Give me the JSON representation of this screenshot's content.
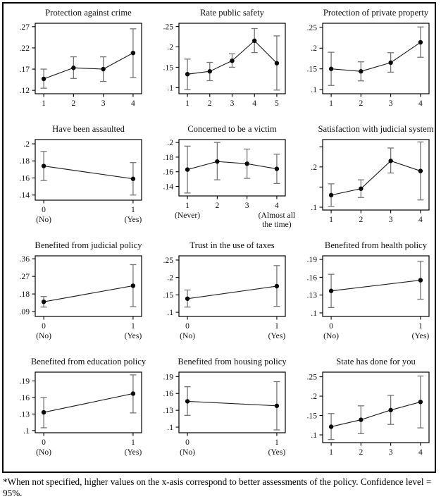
{
  "footnote": "*When not specified, higher values on the x-asis correspond to better assessments of the policy. Confidence level = 95%.",
  "colors": {
    "ink": "#111111",
    "line": "#222222",
    "marker": "#0a0a0a",
    "ci_bar": "#767676",
    "frame": "#000000",
    "background": "#ffffff"
  },
  "chart_data": [
    {
      "type": "line",
      "title": "Protection against crime",
      "x_ticks": [
        "1",
        "2",
        "3",
        "4"
      ],
      "x_subticks": [
        "",
        "",
        "",
        ""
      ],
      "values": [
        0.147,
        0.173,
        0.17,
        0.208
      ],
      "ci_low": [
        0.125,
        0.148,
        0.141,
        0.15
      ],
      "ci_high": [
        0.17,
        0.199,
        0.199,
        0.265
      ],
      "y_tick_values": [
        0.12,
        0.17,
        0.22,
        0.27
      ],
      "y_tick_labels": [
        ".12",
        ".17",
        ".22",
        ".27"
      ],
      "ylim": [
        0.112,
        0.278
      ]
    },
    {
      "type": "line",
      "title": "Rate public safety",
      "x_ticks": [
        "1",
        "2",
        "3",
        "4",
        "5"
      ],
      "x_subticks": [
        "",
        "",
        "",
        "",
        ""
      ],
      "values": [
        0.133,
        0.14,
        0.166,
        0.215,
        0.16
      ],
      "ci_low": [
        0.095,
        0.117,
        0.15,
        0.186,
        0.094
      ],
      "ci_high": [
        0.17,
        0.162,
        0.183,
        0.245,
        0.227
      ],
      "y_tick_values": [
        0.1,
        0.15,
        0.2,
        0.25
      ],
      "y_tick_labels": [
        ".1",
        ".15",
        ".2",
        ".25"
      ],
      "ylim": [
        0.085,
        0.258
      ]
    },
    {
      "type": "line",
      "title": "Protection of private property",
      "x_ticks": [
        "1",
        "2",
        "3",
        "4"
      ],
      "x_subticks": [
        "",
        "",
        "",
        ""
      ],
      "values": [
        0.15,
        0.144,
        0.165,
        0.214
      ],
      "ci_low": [
        0.11,
        0.121,
        0.142,
        0.178
      ],
      "ci_high": [
        0.19,
        0.167,
        0.189,
        0.251
      ],
      "y_tick_values": [
        0.1,
        0.15,
        0.2,
        0.25
      ],
      "y_tick_labels": [
        ".1",
        ".15",
        ".2",
        ".25"
      ],
      "ylim": [
        0.09,
        0.26
      ]
    },
    {
      "type": "line",
      "title": "Have been assaulted",
      "x_ticks": [
        "0",
        "1"
      ],
      "x_subticks": [
        "(No)",
        "(Yes)"
      ],
      "values": [
        0.174,
        0.159
      ],
      "ci_low": [
        0.157,
        0.14
      ],
      "ci_high": [
        0.191,
        0.178
      ],
      "y_tick_values": [
        0.14,
        0.16,
        0.18,
        0.2
      ],
      "y_tick_labels": [
        ".14",
        ".16",
        ".18",
        ".2"
      ],
      "ylim": [
        0.134,
        0.205
      ]
    },
    {
      "type": "line",
      "title": "Concerned to be a victim",
      "x_ticks": [
        "1",
        "2",
        "3",
        "4"
      ],
      "x_subticks": [
        "(Never)",
        "",
        "",
        "(Almost all\nthe time)"
      ],
      "values": [
        0.163,
        0.174,
        0.171,
        0.164
      ],
      "ci_low": [
        0.131,
        0.149,
        0.151,
        0.144
      ],
      "ci_high": [
        0.195,
        0.2,
        0.191,
        0.184
      ],
      "y_tick_values": [
        0.14,
        0.16,
        0.18,
        0.2
      ],
      "y_tick_labels": [
        ".14",
        ".16",
        ".18",
        ".2"
      ],
      "ylim": [
        0.127,
        0.204
      ]
    },
    {
      "type": "line",
      "title": "Satisfaction with judicial system",
      "x_ticks": [
        "1",
        "2",
        "3",
        "4"
      ],
      "x_subticks": [
        "",
        "",
        "",
        ""
      ],
      "values": [
        0.13,
        0.146,
        0.215,
        0.19
      ],
      "ci_low": [
        0.102,
        0.124,
        0.185,
        0.118
      ],
      "ci_high": [
        0.158,
        0.168,
        0.247,
        0.262
      ],
      "y_tick_values": [
        0.1,
        0.15,
        0.2,
        0.25
      ],
      "y_tick_labels": [
        ".1",
        "",
        ".2",
        ""
      ],
      "ylim": [
        0.093,
        0.268
      ]
    },
    {
      "type": "line",
      "title": "Benefited from judicial policy",
      "x_ticks": [
        "0",
        "1"
      ],
      "x_subticks": [
        "(No)",
        "(Yes)"
      ],
      "values": [
        0.14,
        0.222
      ],
      "ci_low": [
        0.113,
        0.115
      ],
      "ci_high": [
        0.167,
        0.33
      ],
      "y_tick_values": [
        0.09,
        0.18,
        0.27,
        0.36
      ],
      "y_tick_labels": [
        ".09",
        ".18",
        ".27",
        ".36"
      ],
      "ylim": [
        0.065,
        0.375
      ]
    },
    {
      "type": "line",
      "title": "Trust in the use of taxes",
      "x_ticks": [
        "0",
        "1"
      ],
      "x_subticks": [
        "(No)",
        "(Yes)"
      ],
      "values": [
        0.139,
        0.175
      ],
      "ci_low": [
        0.115,
        0.117
      ],
      "ci_high": [
        0.164,
        0.234
      ],
      "y_tick_values": [
        0.1,
        0.15,
        0.2,
        0.25
      ],
      "y_tick_labels": [
        ".1",
        ".15",
        ".2",
        ".25"
      ],
      "ylim": [
        0.088,
        0.262
      ]
    },
    {
      "type": "line",
      "title": "Benefited from health policy",
      "x_ticks": [
        "0",
        "1"
      ],
      "x_subticks": [
        "(No)",
        "(Yes)"
      ],
      "values": [
        0.137,
        0.155
      ],
      "ci_low": [
        0.109,
        0.123
      ],
      "ci_high": [
        0.165,
        0.187
      ],
      "y_tick_values": [
        0.1,
        0.13,
        0.16,
        0.19
      ],
      "y_tick_labels": [
        ".1",
        ".13",
        ".16",
        ".19"
      ],
      "ylim": [
        0.094,
        0.196
      ]
    },
    {
      "type": "line",
      "title": "Benefited from education policy",
      "x_ticks": [
        "0",
        "1"
      ],
      "x_subticks": [
        "(No)",
        "(Yes)"
      ],
      "values": [
        0.133,
        0.167
      ],
      "ci_low": [
        0.105,
        0.132
      ],
      "ci_high": [
        0.16,
        0.201
      ],
      "y_tick_values": [
        0.1,
        0.13,
        0.16,
        0.19
      ],
      "y_tick_labels": [
        ".1",
        ".13",
        ".16",
        ".19"
      ],
      "ylim": [
        0.096,
        0.206
      ]
    },
    {
      "type": "line",
      "title": "Benefited from housing policy",
      "x_ticks": [
        "0",
        "1"
      ],
      "x_subticks": [
        "(No)",
        "(Yes)"
      ],
      "values": [
        0.146,
        0.138
      ],
      "ci_low": [
        0.121,
        0.095
      ],
      "ci_high": [
        0.172,
        0.181
      ],
      "y_tick_values": [
        0.1,
        0.13,
        0.16,
        0.19
      ],
      "y_tick_labels": [
        ".1",
        ".13",
        ".16",
        ".19"
      ],
      "ylim": [
        0.09,
        0.198
      ]
    },
    {
      "type": "line",
      "title": "State has done for you",
      "x_ticks": [
        "1",
        "2",
        "3",
        "4"
      ],
      "x_subticks": [
        "",
        "",
        "",
        ""
      ],
      "values": [
        0.121,
        0.139,
        0.164,
        0.185
      ],
      "ci_low": [
        0.088,
        0.103,
        0.127,
        0.118
      ],
      "ci_high": [
        0.155,
        0.175,
        0.202,
        0.252
      ],
      "y_tick_values": [
        0.1,
        0.15,
        0.2,
        0.25
      ],
      "y_tick_labels": [
        ".1",
        ".15",
        ".2",
        ".25"
      ],
      "ylim": [
        0.08,
        0.262
      ]
    }
  ]
}
